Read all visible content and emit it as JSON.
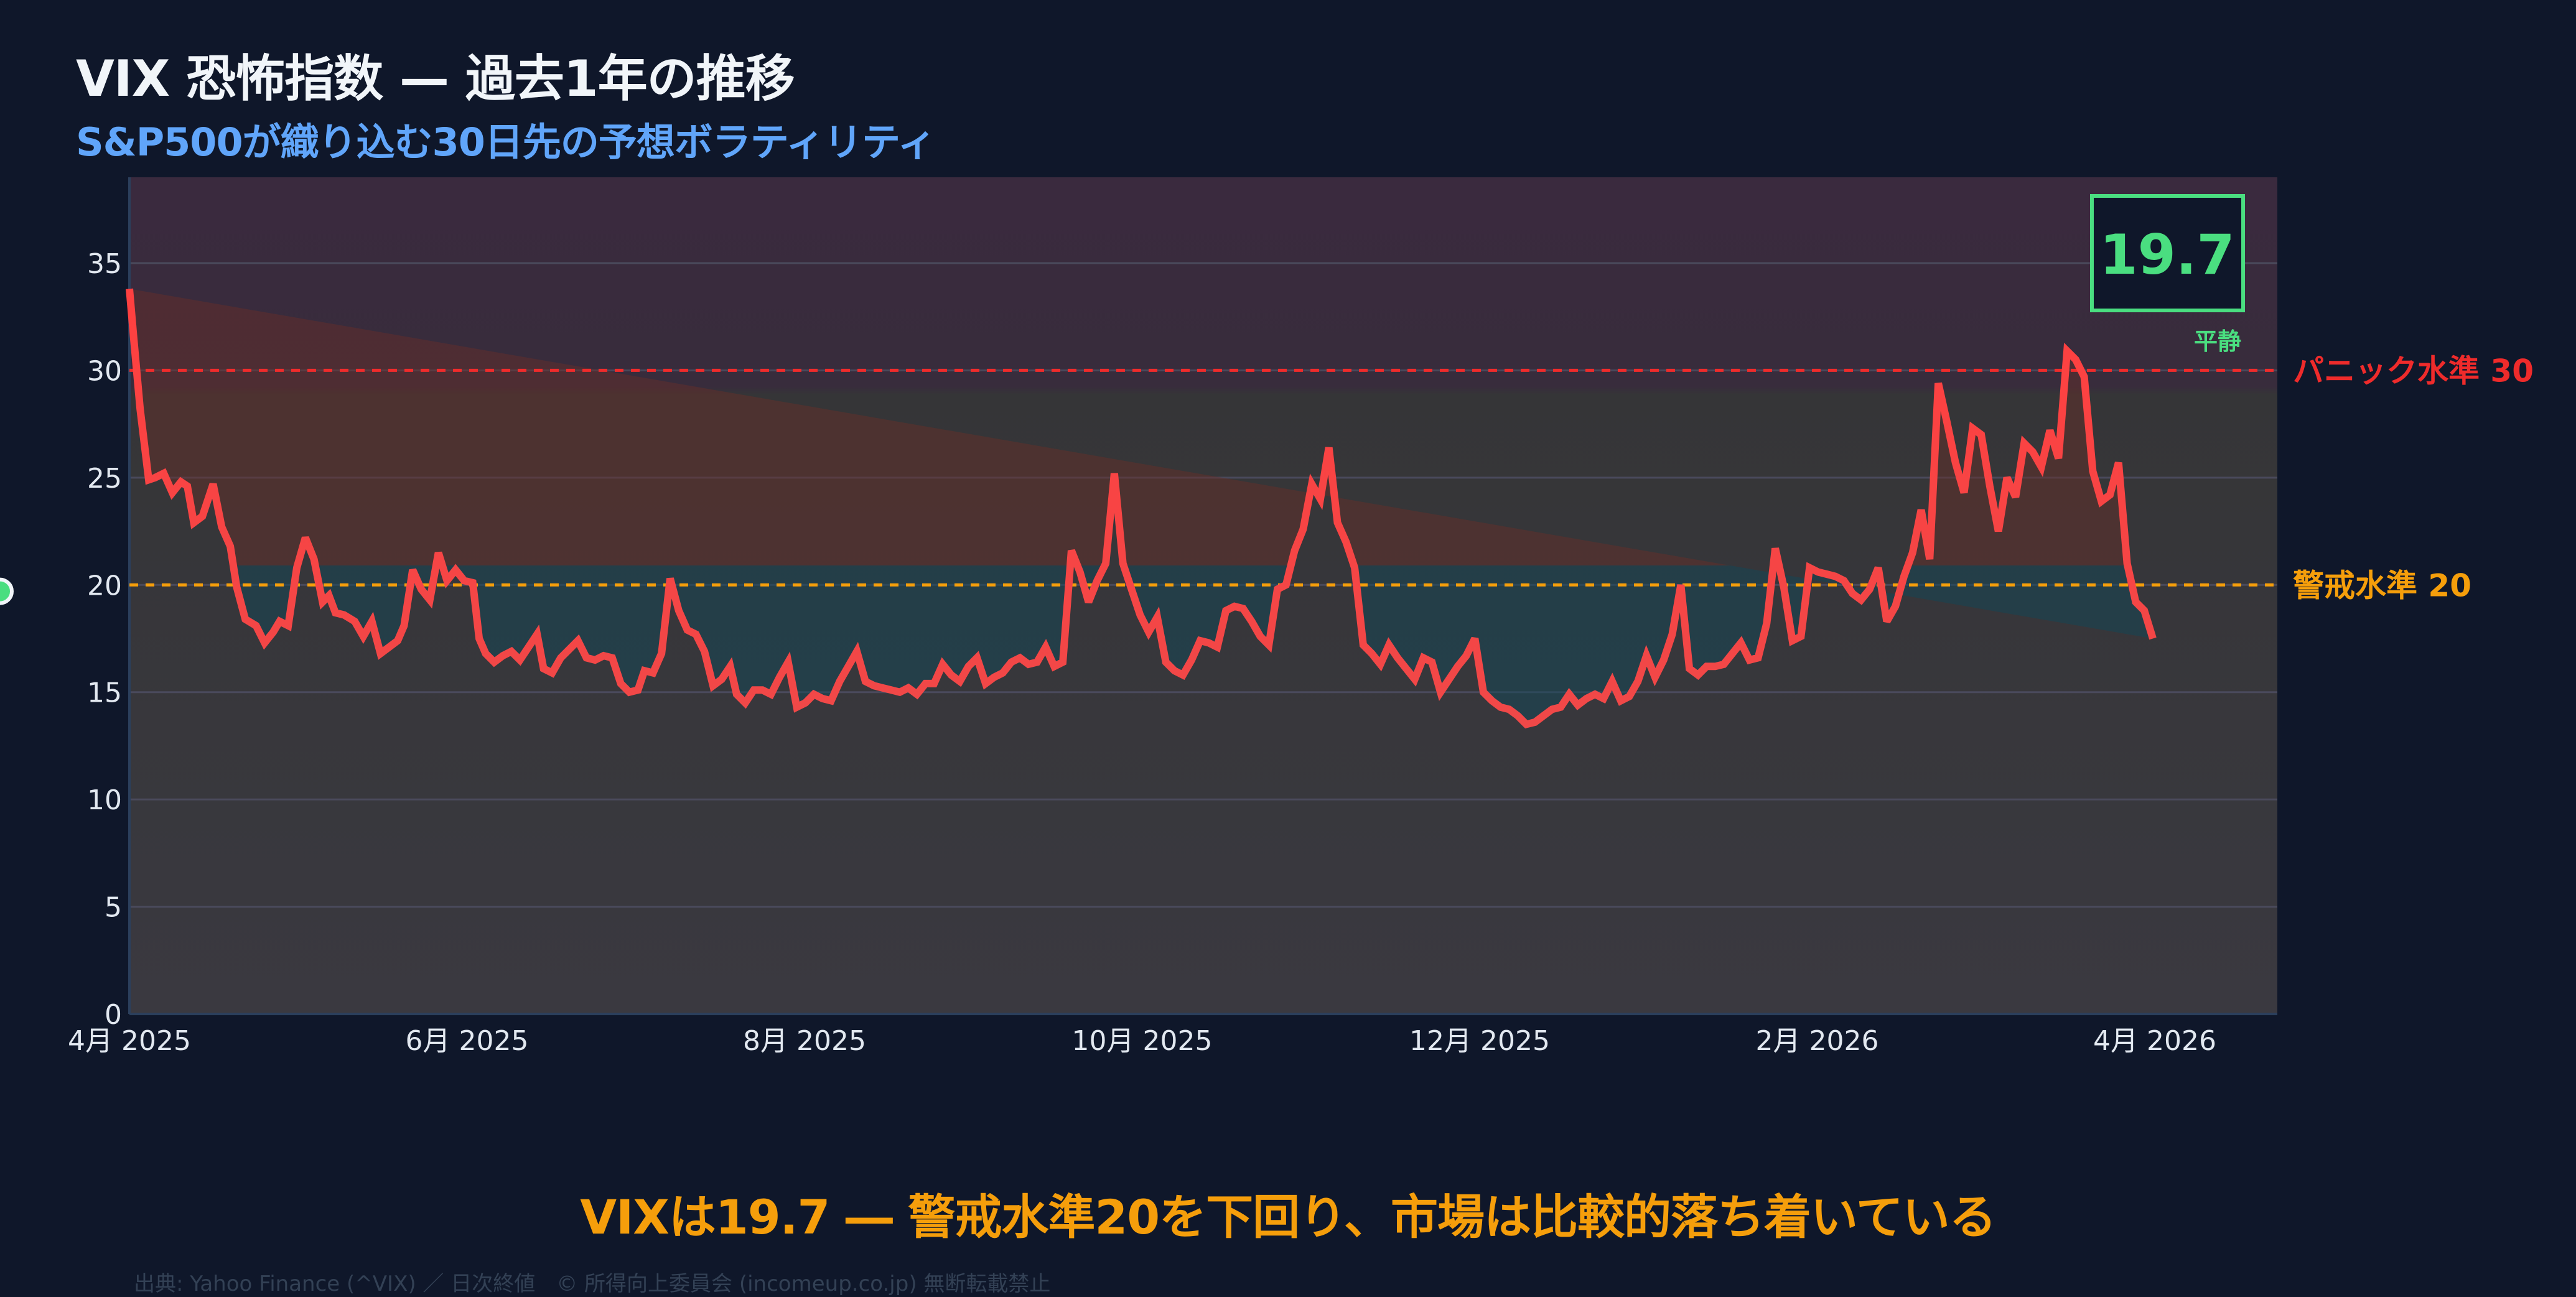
{
  "header": {
    "title": "VIX 恐怖指数 — 過去1年の推移",
    "subtitle": "S&P500が織り込む30日先の予想ボラティリティ"
  },
  "current": {
    "value": "19.7",
    "status": "平静"
  },
  "reference_lines": {
    "panic": {
      "label": "パニック水準 30",
      "value": 30,
      "color": "#ef2b2b"
    },
    "warning": {
      "label": "警戒水準 20",
      "value": 20,
      "color": "#f59e0b"
    }
  },
  "conclusion": "VIXは19.7 ― 警戒水準20を下回り、市場は比較的落ち着いている",
  "footer": "出典: Yahoo Finance (^VIX) ／ 日次終値　© 所得向上委員会 (incomeup.co.jp) 無断転載禁止",
  "colors": {
    "background": "#0f172a",
    "line": "#ff4136",
    "current_marker": "#4ade80",
    "value_box": "#4ade80",
    "subtitle": "#60a5fa",
    "conclusion": "#f59e0b"
  },
  "chart_data": {
    "type": "line",
    "title": "VIX 恐怖指数 — 過去1年の推移",
    "subtitle": "S&P500が織り込む30日先の予想ボラティリティ",
    "xlabel": "",
    "ylabel": "",
    "ylim": [
      0,
      39
    ],
    "yticks": [
      0,
      5,
      10,
      15,
      20,
      25,
      30,
      35
    ],
    "xtick_labels": [
      "4月 2025",
      "6月 2025",
      "8月 2025",
      "10月 2025",
      "12月 2025",
      "2月 2026",
      "4月 2026"
    ],
    "grid": true,
    "legend": null,
    "annotations": [
      {
        "type": "hline",
        "y": 30,
        "label": "パニック水準 30",
        "style": "dotted",
        "color": "#ef2b2b"
      },
      {
        "type": "hline",
        "y": 20,
        "label": "警戒水準 20",
        "style": "dotted",
        "color": "#f59e0b"
      },
      {
        "type": "marker",
        "label": "19.7 平静",
        "y": 19.7
      }
    ],
    "series": [
      {
        "name": "VIX",
        "x_frac": [
          0.0,
          0.002,
          0.005,
          0.009,
          0.012,
          0.016,
          0.02,
          0.024,
          0.027,
          0.03,
          0.034,
          0.039,
          0.043,
          0.047,
          0.05,
          0.054,
          0.059,
          0.063,
          0.067,
          0.07,
          0.074,
          0.078,
          0.082,
          0.086,
          0.09,
          0.093,
          0.096,
          0.1,
          0.105,
          0.109,
          0.113,
          0.117,
          0.121,
          0.125,
          0.128,
          0.132,
          0.136,
          0.14,
          0.144,
          0.148,
          0.152,
          0.156,
          0.16,
          0.163,
          0.166,
          0.17,
          0.174,
          0.178,
          0.182,
          0.186,
          0.19,
          0.193,
          0.197,
          0.201,
          0.205,
          0.209,
          0.213,
          0.217,
          0.221,
          0.225,
          0.229,
          0.233,
          0.237,
          0.24,
          0.244,
          0.248,
          0.252,
          0.256,
          0.26,
          0.264,
          0.268,
          0.272,
          0.276,
          0.28,
          0.283,
          0.287,
          0.291,
          0.295,
          0.299,
          0.303,
          0.307,
          0.311,
          0.315,
          0.319,
          0.323,
          0.327,
          0.331,
          0.335,
          0.339,
          0.343,
          0.347,
          0.351,
          0.355,
          0.359,
          0.363,
          0.367,
          0.371,
          0.375,
          0.379,
          0.383,
          0.387,
          0.391,
          0.395,
          0.399,
          0.403,
          0.407,
          0.411,
          0.415,
          0.419,
          0.423,
          0.427,
          0.431,
          0.435,
          0.439,
          0.443,
          0.447,
          0.451,
          0.455,
          0.459,
          0.463,
          0.467,
          0.471,
          0.475,
          0.479,
          0.483,
          0.487,
          0.491,
          0.495,
          0.499,
          0.503,
          0.507,
          0.511,
          0.515,
          0.519,
          0.523,
          0.527,
          0.531,
          0.535,
          0.539,
          0.543,
          0.547,
          0.551,
          0.555,
          0.559,
          0.563,
          0.567,
          0.571,
          0.575,
          0.579,
          0.583,
          0.587,
          0.591,
          0.595,
          0.599,
          0.603,
          0.607,
          0.611,
          0.615,
          0.619,
          0.623,
          0.627,
          0.631,
          0.635,
          0.639,
          0.643,
          0.647,
          0.651,
          0.655,
          0.659,
          0.663,
          0.667,
          0.671,
          0.675,
          0.679,
          0.683,
          0.687,
          0.691,
          0.695,
          0.699,
          0.703,
          0.707,
          0.711,
          0.715,
          0.719,
          0.723,
          0.727,
          0.731,
          0.735,
          0.739,
          0.743,
          0.747,
          0.751,
          0.755,
          0.759,
          0.763,
          0.767,
          0.771,
          0.775,
          0.779,
          0.783,
          0.787,
          0.791,
          0.795,
          0.799,
          0.803,
          0.807,
          0.811,
          0.815,
          0.819,
          0.823,
          0.827,
          0.831,
          0.835,
          0.839,
          0.843,
          0.847,
          0.851,
          0.855,
          0.859,
          0.863,
          0.867,
          0.871,
          0.875,
          0.879,
          0.883,
          0.887,
          0.891,
          0.895,
          0.899,
          0.903,
          0.907,
          0.911,
          0.915,
          0.919,
          0.923,
          0.927,
          0.931,
          0.935,
          0.939,
          0.943
        ],
        "values": [
          33.8,
          31.5,
          28.2,
          24.9,
          25.0,
          25.2,
          24.3,
          24.8,
          24.6,
          22.9,
          23.2,
          24.7,
          22.7,
          21.8,
          19.9,
          18.4,
          18.1,
          17.3,
          17.8,
          18.3,
          18.1,
          20.8,
          22.2,
          21.2,
          19.2,
          19.5,
          18.7,
          18.6,
          18.3,
          17.6,
          18.3,
          16.8,
          17.1,
          17.4,
          18.1,
          20.7,
          19.8,
          19.3,
          21.5,
          20.2,
          20.7,
          20.2,
          20.1,
          17.5,
          16.8,
          16.4,
          16.7,
          16.9,
          16.5,
          17.1,
          17.7,
          16.1,
          15.9,
          16.6,
          17.0,
          17.4,
          16.6,
          16.5,
          16.7,
          16.6,
          15.4,
          15.0,
          15.1,
          16.0,
          15.9,
          16.8,
          20.3,
          18.8,
          17.9,
          17.7,
          16.9,
          15.3,
          15.6,
          16.2,
          14.9,
          14.5,
          15.1,
          15.1,
          14.9,
          15.7,
          16.4,
          14.3,
          14.5,
          14.9,
          14.7,
          14.6,
          15.5,
          16.2,
          16.9,
          15.5,
          15.3,
          15.2,
          15.1,
          15.0,
          15.2,
          14.9,
          15.4,
          15.4,
          16.3,
          15.8,
          15.5,
          16.2,
          16.6,
          15.4,
          15.7,
          15.9,
          16.4,
          16.6,
          16.3,
          16.4,
          17.1,
          16.2,
          16.4,
          21.6,
          20.6,
          19.2,
          20.2,
          21.0,
          25.2,
          21.0,
          19.8,
          18.6,
          17.8,
          18.5,
          16.4,
          16.0,
          15.8,
          16.5,
          17.4,
          17.3,
          17.1,
          18.8,
          19.0,
          18.9,
          18.3,
          17.6,
          17.2,
          19.8,
          20.0,
          21.6,
          22.6,
          24.7,
          24.0,
          26.4,
          22.9,
          22.0,
          20.8,
          17.2,
          16.8,
          16.3,
          17.2,
          16.6,
          16.1,
          15.6,
          16.6,
          16.4,
          15.0,
          15.6,
          16.2,
          16.7,
          17.5,
          15.0,
          14.6,
          14.3,
          14.2,
          13.9,
          13.5,
          13.6,
          13.9,
          14.2,
          14.3,
          14.9,
          14.4,
          14.7,
          14.9,
          14.7,
          15.5,
          14.6,
          14.8,
          15.5,
          16.7,
          15.7,
          16.5,
          17.7,
          20.0,
          16.1,
          15.8,
          16.2,
          16.2,
          16.3,
          16.8,
          17.3,
          16.5,
          16.6,
          18.2,
          21.7,
          19.9,
          17.4,
          17.6,
          20.8,
          20.6,
          20.5,
          20.4,
          20.2,
          19.6,
          19.3,
          19.8,
          20.8,
          18.3,
          19.0,
          20.4,
          21.5,
          23.5,
          21.2,
          29.4,
          27.6,
          25.7,
          24.3,
          27.3,
          27.0,
          24.6,
          22.5,
          25.0,
          24.1,
          26.6,
          26.2,
          25.5,
          27.2,
          25.9,
          30.9,
          30.5,
          29.7,
          25.3,
          23.9,
          24.2,
          25.7,
          21.0,
          19.2,
          18.8,
          17.5,
          19.7
        ]
      }
    ]
  }
}
